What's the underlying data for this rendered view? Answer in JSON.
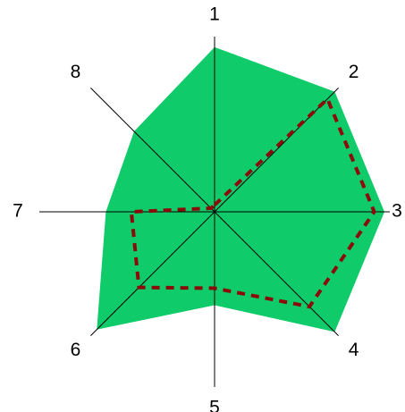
{
  "chart_data": {
    "type": "radar",
    "categories": [
      "1",
      "2",
      "3",
      "4",
      "5",
      "6",
      "7",
      "8"
    ],
    "rlim": [
      0,
      10
    ],
    "series": [
      {
        "color": "#0fcb6a",
        "style": "filled",
        "values": [
          9.7,
          10,
          10,
          10,
          5.5,
          9.8,
          6.4,
          6.7
        ]
      },
      {
        "color": "#8b0a0a",
        "style": "dashed",
        "values": [
          0.4,
          9.4,
          9.4,
          7.9,
          4.5,
          6.3,
          4.9,
          0.3
        ]
      }
    ]
  }
}
